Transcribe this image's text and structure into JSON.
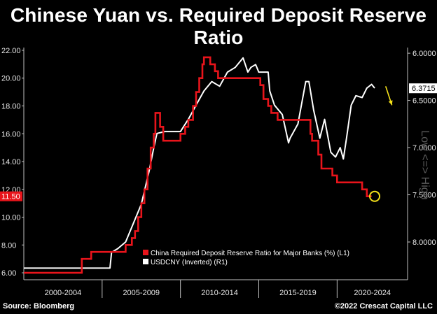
{
  "title": "Chinese Yuan vs. Required Deposit Reserve Ratio",
  "footer": {
    "source": "Source: Bloomberg",
    "copyright": "©2022 Crescat Capital LLC"
  },
  "side_label": "Low <=> High",
  "colors": {
    "rrr": "#e8141b",
    "usdcny": "#ffffff",
    "annotation": "#f5e11a",
    "axis": "#bfbfbf"
  },
  "chart_data": {
    "type": "line",
    "x_categories": [
      "2000-2004",
      "2005-2009",
      "2010-2014",
      "2015-2019",
      "2020-2024"
    ],
    "xlim": [
      2000,
      2024.5
    ],
    "y_left": {
      "lim": [
        5.5,
        22.2
      ],
      "ticks": [
        "6.00",
        "8.00",
        "10.00",
        "12.00",
        "14.00",
        "16.00",
        "18.00",
        "20.00",
        "22.00"
      ]
    },
    "y_right": {
      "lim": [
        8.4,
        5.94
      ],
      "inverted": true,
      "ticks": [
        "6.0000",
        "6.5000",
        "7.0000",
        "7.5000",
        "8.0000"
      ]
    },
    "last_values": {
      "rrr": "11.50",
      "usdcny": "6.3715"
    },
    "legend": [
      {
        "label": "China Required Deposit Reserve Ratio for Major Banks (%) (L1)",
        "series": "rrr"
      },
      {
        "label": "USDCNY (Inverted) (R1)",
        "series": "usdcny"
      }
    ],
    "series": [
      {
        "name": "China Required Deposit Reserve Ratio for Major Banks (%)",
        "key": "rrr",
        "axis": "left",
        "step": true,
        "points": [
          [
            2000.0,
            6.0
          ],
          [
            2003.7,
            7.0
          ],
          [
            2004.3,
            7.5
          ],
          [
            2006.5,
            8.0
          ],
          [
            2006.9,
            8.5
          ],
          [
            2007.1,
            9.0
          ],
          [
            2007.3,
            10.0
          ],
          [
            2007.5,
            11.0
          ],
          [
            2007.7,
            12.0
          ],
          [
            2007.9,
            13.5
          ],
          [
            2008.1,
            15.0
          ],
          [
            2008.3,
            16.0
          ],
          [
            2008.4,
            17.5
          ],
          [
            2008.7,
            16.5
          ],
          [
            2008.9,
            15.5
          ],
          [
            2010.0,
            16.0
          ],
          [
            2010.3,
            16.5
          ],
          [
            2010.5,
            17.0
          ],
          [
            2010.8,
            18.0
          ],
          [
            2011.0,
            19.0
          ],
          [
            2011.2,
            20.0
          ],
          [
            2011.4,
            21.0
          ],
          [
            2011.5,
            21.5
          ],
          [
            2011.9,
            21.0
          ],
          [
            2012.2,
            20.5
          ],
          [
            2012.4,
            20.0
          ],
          [
            2015.1,
            19.5
          ],
          [
            2015.3,
            18.5
          ],
          [
            2015.6,
            18.0
          ],
          [
            2015.8,
            17.5
          ],
          [
            2016.2,
            17.0
          ],
          [
            2018.3,
            16.0
          ],
          [
            2018.4,
            15.5
          ],
          [
            2018.8,
            14.5
          ],
          [
            2019.0,
            13.5
          ],
          [
            2019.7,
            13.0
          ],
          [
            2020.0,
            12.5
          ],
          [
            2021.6,
            12.0
          ],
          [
            2021.9,
            11.5
          ],
          [
            2022.2,
            11.5
          ]
        ]
      },
      {
        "name": "USDCNY (Inverted)",
        "key": "usdcny",
        "axis": "right",
        "points": [
          [
            2000.0,
            8.277
          ],
          [
            2005.5,
            8.277
          ],
          [
            2005.6,
            8.11
          ],
          [
            2006.0,
            8.07
          ],
          [
            2006.5,
            8.0
          ],
          [
            2007.0,
            7.8
          ],
          [
            2007.5,
            7.6
          ],
          [
            2008.0,
            7.25
          ],
          [
            2008.3,
            7.0
          ],
          [
            2008.5,
            6.85
          ],
          [
            2009.0,
            6.83
          ],
          [
            2010.0,
            6.83
          ],
          [
            2010.5,
            6.7
          ],
          [
            2011.0,
            6.55
          ],
          [
            2011.5,
            6.4
          ],
          [
            2012.0,
            6.3
          ],
          [
            2012.5,
            6.35
          ],
          [
            2013.0,
            6.2
          ],
          [
            2013.5,
            6.15
          ],
          [
            2014.0,
            6.05
          ],
          [
            2014.3,
            6.2
          ],
          [
            2014.5,
            6.15
          ],
          [
            2014.8,
            6.12
          ],
          [
            2015.0,
            6.2
          ],
          [
            2015.6,
            6.2
          ],
          [
            2015.7,
            6.4
          ],
          [
            2016.0,
            6.55
          ],
          [
            2016.5,
            6.65
          ],
          [
            2016.9,
            6.95
          ],
          [
            2017.0,
            6.9
          ],
          [
            2017.5,
            6.75
          ],
          [
            2018.0,
            6.3
          ],
          [
            2018.2,
            6.3
          ],
          [
            2018.5,
            6.6
          ],
          [
            2018.9,
            6.9
          ],
          [
            2019.2,
            6.7
          ],
          [
            2019.6,
            7.05
          ],
          [
            2019.9,
            7.1
          ],
          [
            2020.2,
            7.0
          ],
          [
            2020.4,
            7.12
          ],
          [
            2020.6,
            6.9
          ],
          [
            2020.9,
            6.55
          ],
          [
            2021.2,
            6.45
          ],
          [
            2021.6,
            6.47
          ],
          [
            2021.9,
            6.37
          ],
          [
            2022.2,
            6.33
          ],
          [
            2022.4,
            6.37
          ]
        ]
      }
    ],
    "annotations": [
      {
        "type": "arrow",
        "color": "yellow",
        "from": [
          2023.1,
          6.35
        ],
        "to": [
          2023.5,
          6.55
        ]
      },
      {
        "type": "circle",
        "color": "yellow",
        "series": "rrr",
        "at": [
          2022.4,
          11.5
        ]
      }
    ]
  }
}
